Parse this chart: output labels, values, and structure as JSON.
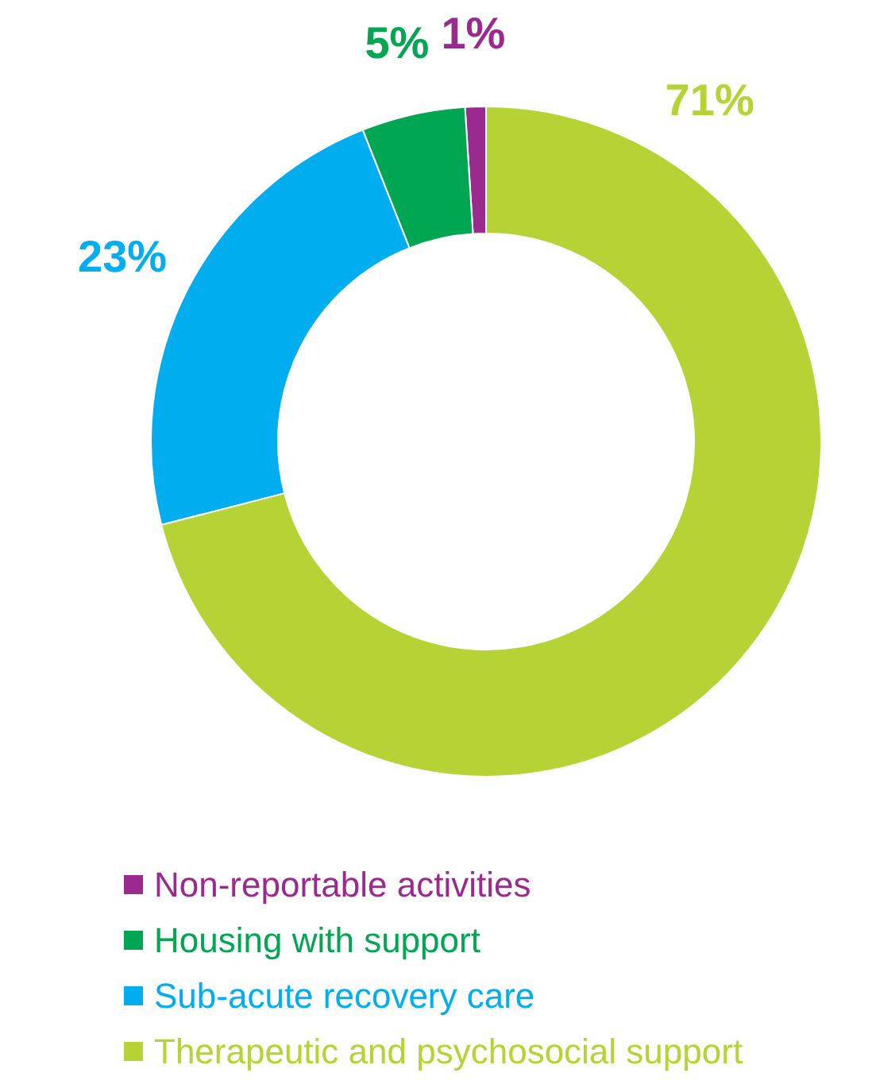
{
  "chart_data": {
    "type": "donut",
    "categories": [
      "Non-reportable activities",
      "Housing with support",
      "Sub-acute recovery care",
      "Therapeutic and psychosocial support"
    ],
    "values": [
      1,
      5,
      23,
      71
    ],
    "colors": [
      "#9b2a8f",
      "#00a651",
      "#00aeef",
      "#b5d334"
    ],
    "value_labels": [
      "1%",
      "5%",
      "23%",
      "71%"
    ],
    "legend": "bottom"
  }
}
